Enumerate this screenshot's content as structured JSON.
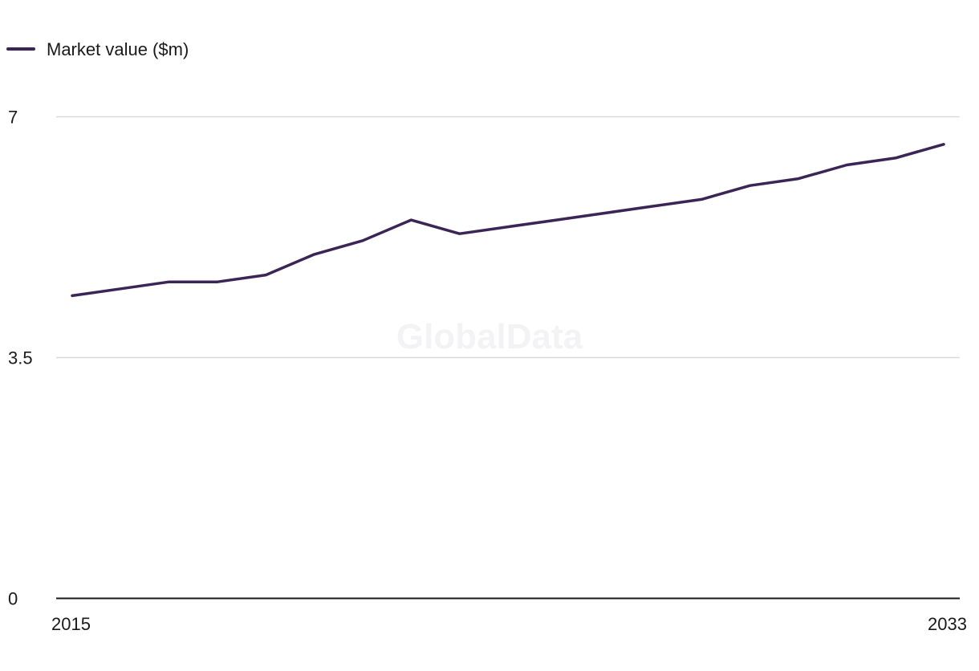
{
  "chart_data": {
    "type": "line",
    "watermark": "GlobalData",
    "series": [
      {
        "name": "Market value ($m)",
        "color": "#3a2556",
        "x": [
          2015,
          2016,
          2017,
          2018,
          2019,
          2020,
          2021,
          2022,
          2023,
          2024,
          2025,
          2026,
          2027,
          2028,
          2029,
          2030,
          2031,
          2032,
          2033
        ],
        "values": [
          4.4,
          4.5,
          4.6,
          4.6,
          4.7,
          5.0,
          5.2,
          5.5,
          5.3,
          5.4,
          5.5,
          5.6,
          5.7,
          5.8,
          6.0,
          6.1,
          6.3,
          6.4,
          6.6
        ]
      }
    ],
    "x_ticks": [
      "2015",
      "2033"
    ],
    "y_ticks": [
      {
        "value": 0,
        "label": "0"
      },
      {
        "value": 3.5,
        "label": "3.5"
      },
      {
        "value": 7,
        "label": "7"
      }
    ],
    "xlim": [
      2015,
      2033
    ],
    "ylim": [
      0,
      7
    ],
    "grid": true,
    "legend_position": "top-left",
    "axis_color": "#1a1a1a",
    "grid_color": "#d9d9d9"
  }
}
